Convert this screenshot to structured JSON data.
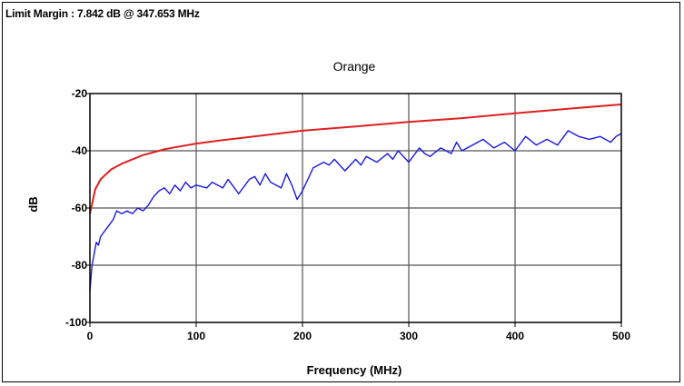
{
  "header": {
    "limit_margin": "Limit Margin : 7.842 dB @ 347.653 MHz"
  },
  "chart_data": {
    "type": "line",
    "title": "Orange",
    "xlabel": "Frequency (MHz)",
    "ylabel": "dB",
    "xlim": [
      0,
      500
    ],
    "ylim": [
      -100,
      -20
    ],
    "x_ticks": [
      "0",
      "100",
      "200",
      "300",
      "400",
      "500"
    ],
    "y_ticks": [
      "-20",
      "-40",
      "-60",
      "-80",
      "-100"
    ],
    "grid": true,
    "series": [
      {
        "color": "#e02020",
        "x": [
          0,
          5,
          10,
          20,
          30,
          40,
          50,
          60,
          70,
          80,
          100,
          125,
          150,
          200,
          250,
          300,
          350,
          400,
          450,
          500
        ],
        "values": [
          -62,
          -53.5,
          -50,
          -46.5,
          -44.5,
          -43,
          -41.5,
          -40.5,
          -39.5,
          -38.8,
          -37.5,
          -36.3,
          -35.2,
          -33,
          -31.5,
          -29.9,
          -28.6,
          -26.9,
          -25.3,
          -23.8
        ]
      },
      {
        "color": "#1a1adf",
        "x": [
          0,
          2,
          4,
          6,
          8,
          10,
          14,
          18,
          22,
          25,
          30,
          35,
          40,
          45,
          50,
          55,
          60,
          65,
          70,
          75,
          80,
          85,
          90,
          95,
          100,
          110,
          115,
          120,
          125,
          130,
          140,
          150,
          155,
          160,
          165,
          170,
          180,
          185,
          190,
          195,
          200,
          205,
          210,
          220,
          225,
          230,
          240,
          250,
          255,
          260,
          270,
          280,
          285,
          290,
          300,
          310,
          315,
          320,
          330,
          340,
          345,
          350,
          360,
          370,
          380,
          390,
          400,
          410,
          420,
          430,
          440,
          450,
          460,
          470,
          480,
          490,
          495,
          500
        ],
        "values": [
          -89,
          -80,
          -76,
          -72,
          -73,
          -70,
          -68,
          -66,
          -64,
          -61,
          -62,
          -61,
          -62,
          -60,
          -61,
          -59,
          -56,
          -54,
          -53,
          -55,
          -52,
          -54,
          -51,
          -53,
          -52,
          -53,
          -51,
          -52,
          -53,
          -50,
          -55,
          -50,
          -49,
          -52,
          -48,
          -51,
          -53,
          -48,
          -52,
          -57,
          -54,
          -50,
          -46,
          -44,
          -45,
          -43,
          -47,
          -43,
          -45,
          -42,
          -44,
          -41,
          -43,
          -40,
          -44,
          -39,
          -41,
          -42,
          -39,
          -41,
          -37,
          -40,
          -38,
          -36,
          -39,
          -37,
          -40,
          -35,
          -38,
          -36,
          -38,
          -33,
          -35,
          -36,
          -35,
          -37,
          -35,
          -34
        ]
      }
    ]
  }
}
